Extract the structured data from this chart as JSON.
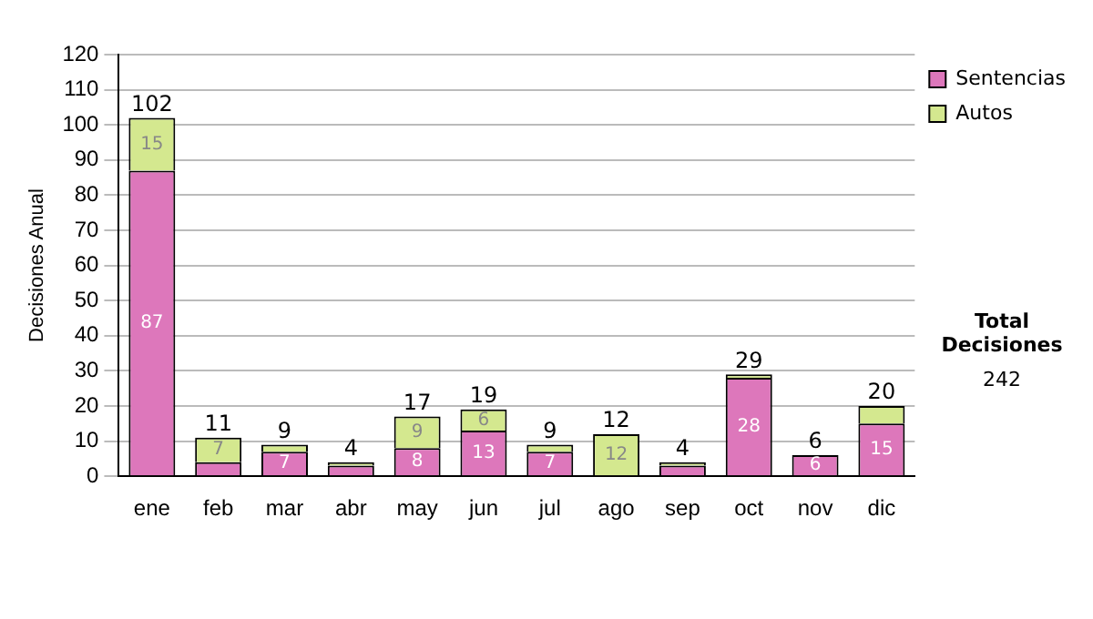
{
  "chart_data": {
    "type": "bar",
    "stacked": true,
    "ylabel": "Decisiones Anual",
    "categories": [
      "ene",
      "feb",
      "mar",
      "abr",
      "may",
      "jun",
      "jul",
      "ago",
      "sep",
      "oct",
      "nov",
      "dic"
    ],
    "series": [
      {
        "name": "Sentencias",
        "color": "#dd77bb",
        "values": [
          87,
          4,
          7,
          3,
          8,
          13,
          7,
          0,
          3,
          28,
          6,
          15
        ],
        "value_labels": [
          "87",
          null,
          "7",
          null,
          "8",
          "13",
          "7",
          null,
          null,
          "28",
          "6",
          "15"
        ]
      },
      {
        "name": "Autos",
        "color": "#d4e88f",
        "values": [
          15,
          7,
          2,
          1,
          9,
          6,
          2,
          12,
          1,
          1,
          0,
          5
        ],
        "value_labels": [
          "15",
          "7",
          null,
          null,
          "9",
          "6",
          null,
          "12",
          null,
          null,
          null,
          null
        ]
      }
    ],
    "totals": [
      "102",
      "11",
      "9",
      "4",
      "17",
      "19",
      "9",
      "12",
      "4",
      "29",
      "6",
      "20"
    ],
    "ylim": [
      0,
      120
    ],
    "yticks": [
      0,
      10,
      20,
      30,
      40,
      50,
      60,
      70,
      80,
      90,
      100,
      110,
      120
    ],
    "grid": "y",
    "legend": "right",
    "annotations": [
      "Total Decisiones",
      "242"
    ]
  }
}
